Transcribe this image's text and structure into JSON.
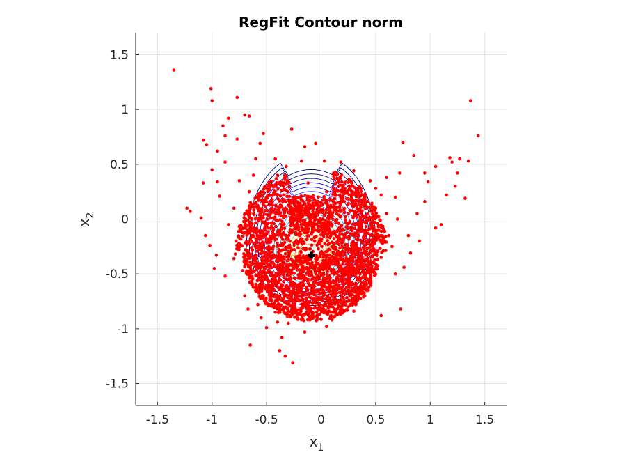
{
  "chart_data": {
    "type": "scatter",
    "title": "RegFit Contour norm",
    "xlabel": {
      "base": "x",
      "sub": "1"
    },
    "ylabel": {
      "base": "x",
      "sub": "2"
    },
    "xlim": [
      -1.7,
      1.7
    ],
    "ylim": [
      -1.7,
      1.7
    ],
    "xticks": [
      -1.5,
      -1,
      -0.5,
      0,
      0.5,
      1,
      1.5
    ],
    "yticks": [
      -1.5,
      -1,
      -0.5,
      0,
      0.5,
      1,
      1.5
    ],
    "xtick_labels": [
      "-1.5",
      "-1",
      "-0.5",
      "0",
      "0.5",
      "1",
      "1.5"
    ],
    "ytick_labels": [
      "-1.5",
      "-1",
      "-0.5",
      "0",
      "0.5",
      "1",
      "1.5"
    ],
    "grid": true,
    "center_marker": {
      "x": -0.09,
      "y": -0.33,
      "color": "#000000"
    },
    "point_color": "#ff0000",
    "contour_colors": [
      "#000080",
      "#0000c0",
      "#2a2aff",
      "#3a6cff",
      "#00a0ff",
      "#20c0a0",
      "#c8c800",
      "#ff8000"
    ],
    "points": [
      [
        -1.35,
        1.36
      ],
      [
        -1.01,
        1.19
      ],
      [
        -1.0,
        1.08
      ],
      [
        -0.77,
        1.11
      ],
      [
        -0.7,
        0.95
      ],
      [
        -0.66,
        0.94
      ],
      [
        -0.85,
        0.92
      ],
      [
        -0.9,
        0.85
      ],
      [
        -0.88,
        0.76
      ],
      [
        -0.77,
        0.73
      ],
      [
        -1.08,
        0.72
      ],
      [
        -1.05,
        0.68
      ],
      [
        -0.95,
        0.62
      ],
      [
        -0.53,
        0.78
      ],
      [
        -0.56,
        0.69
      ],
      [
        -0.27,
        0.82
      ],
      [
        -0.15,
        0.66
      ],
      [
        -0.05,
        0.69
      ],
      [
        -0.88,
        0.52
      ],
      [
        -1.0,
        0.45
      ],
      [
        -0.95,
        0.34
      ],
      [
        -1.08,
        0.33
      ],
      [
        -0.93,
        0.21
      ],
      [
        -1.23,
        0.1
      ],
      [
        -1.2,
        0.07
      ],
      [
        -1.1,
        0.01
      ],
      [
        -1.06,
        -0.15
      ],
      [
        -1.02,
        -0.24
      ],
      [
        -0.96,
        -0.33
      ],
      [
        -0.98,
        -0.45
      ],
      [
        -0.88,
        -0.52
      ],
      [
        -0.8,
        -0.36
      ],
      [
        -0.72,
        -0.47
      ],
      [
        -0.7,
        -0.7
      ],
      [
        -0.6,
        -0.63
      ],
      [
        -0.67,
        -0.82
      ],
      [
        -0.55,
        -0.9
      ],
      [
        -0.5,
        -0.99
      ],
      [
        -0.4,
        -0.94
      ],
      [
        -0.36,
        -1.08
      ],
      [
        -0.38,
        -1.2
      ],
      [
        -0.33,
        -1.25
      ],
      [
        -0.26,
        -1.31
      ],
      [
        -0.65,
        -1.15
      ],
      [
        -0.15,
        -1.03
      ],
      [
        0.05,
        -0.98
      ],
      [
        0.3,
        -0.84
      ],
      [
        0.55,
        -0.88
      ],
      [
        0.73,
        -0.82
      ],
      [
        0.68,
        -0.5
      ],
      [
        0.76,
        -0.44
      ],
      [
        0.82,
        -0.31
      ],
      [
        0.8,
        -0.15
      ],
      [
        0.88,
        0.05
      ],
      [
        0.95,
        0.16
      ],
      [
        1.05,
        -0.08
      ],
      [
        1.1,
        -0.05
      ],
      [
        1.15,
        0.22
      ],
      [
        1.23,
        0.3
      ],
      [
        1.25,
        0.42
      ],
      [
        1.18,
        0.56
      ],
      [
        1.2,
        0.52
      ],
      [
        1.27,
        0.55
      ],
      [
        1.35,
        0.53
      ],
      [
        1.05,
        0.48
      ],
      [
        0.98,
        0.34
      ],
      [
        1.32,
        0.19
      ],
      [
        1.37,
        1.08
      ],
      [
        1.44,
        0.76
      ],
      [
        0.75,
        0.7
      ],
      [
        0.85,
        0.58
      ],
      [
        0.72,
        0.42
      ],
      [
        0.5,
        0.28
      ],
      [
        0.3,
        0.44
      ],
      [
        0.18,
        0.52
      ],
      [
        0.03,
        0.53
      ],
      [
        -0.18,
        0.53
      ],
      [
        -0.12,
        0.33
      ],
      [
        -0.32,
        0.48
      ],
      [
        -0.42,
        0.55
      ],
      [
        -0.6,
        0.55
      ],
      [
        -0.62,
        0.4
      ],
      [
        -0.66,
        0.25
      ],
      [
        -0.7,
        0.05
      ],
      [
        -0.65,
        -0.1
      ],
      [
        -0.58,
        -0.25
      ],
      [
        -0.5,
        -0.4
      ],
      [
        -0.45,
        -0.55
      ],
      [
        -0.38,
        -0.7
      ],
      [
        -0.25,
        -0.8
      ],
      [
        -0.1,
        -0.85
      ],
      [
        0.08,
        -0.78
      ],
      [
        0.25,
        -0.65
      ],
      [
        0.4,
        -0.5
      ],
      [
        0.55,
        -0.35
      ],
      [
        0.62,
        -0.15
      ],
      [
        0.6,
        0.05
      ],
      [
        0.55,
        0.22
      ],
      [
        0.4,
        0.12
      ],
      [
        0.25,
        0.05
      ],
      [
        0.1,
        -0.05
      ],
      [
        -0.05,
        -0.1
      ],
      [
        -0.2,
        -0.15
      ],
      [
        -0.35,
        -0.05
      ],
      [
        -0.45,
        0.1
      ],
      [
        -0.5,
        0.3
      ],
      [
        -0.4,
        0.4
      ],
      [
        -0.25,
        0.2
      ],
      [
        -0.15,
        0.05
      ],
      [
        0.0,
        -0.2
      ],
      [
        0.15,
        -0.3
      ],
      [
        0.3,
        -0.25
      ],
      [
        0.45,
        -0.15
      ],
      [
        0.5,
        0.1
      ],
      [
        -0.3,
        -0.3
      ],
      [
        -0.25,
        -0.45
      ],
      [
        -0.15,
        -0.55
      ],
      [
        0.0,
        -0.6
      ],
      [
        0.15,
        -0.55
      ],
      [
        0.25,
        -0.45
      ],
      [
        -0.55,
        0.0
      ],
      [
        -0.6,
        0.15
      ],
      [
        -0.52,
        -0.15
      ],
      [
        -0.4,
        -0.25
      ],
      [
        0.05,
        0.25
      ],
      [
        0.2,
        0.3
      ],
      [
        0.35,
        0.3
      ],
      [
        0.45,
        0.35
      ],
      [
        0.6,
        0.38
      ],
      [
        0.68,
        0.2
      ],
      [
        0.7,
        0.0
      ],
      [
        0.65,
        -0.25
      ],
      [
        -0.8,
        0.1
      ],
      [
        -0.78,
        -0.2
      ],
      [
        -0.75,
        0.35
      ],
      [
        -0.85,
        -0.05
      ],
      [
        0.9,
        -0.2
      ],
      [
        0.95,
        0.42
      ],
      [
        -0.42,
        -0.85
      ],
      [
        -0.3,
        -0.95
      ],
      [
        0.4,
        -0.7
      ],
      [
        0.2,
        -0.85
      ],
      [
        -0.58,
        -0.78
      ],
      [
        0.1,
        -0.92
      ]
    ]
  }
}
